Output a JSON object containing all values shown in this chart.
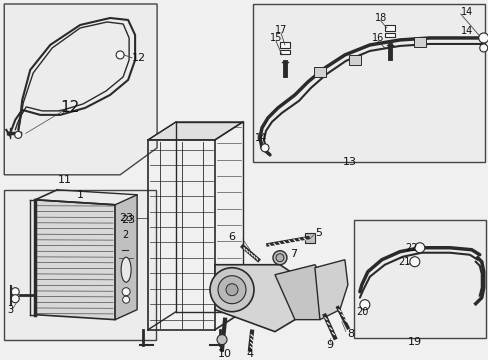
{
  "bg": "#f0f0f0",
  "lc": "#2a2a2a",
  "bc": "#444444",
  "white": "#f9f9f9",
  "figsize": [
    4.89,
    3.6
  ],
  "dpi": 100
}
